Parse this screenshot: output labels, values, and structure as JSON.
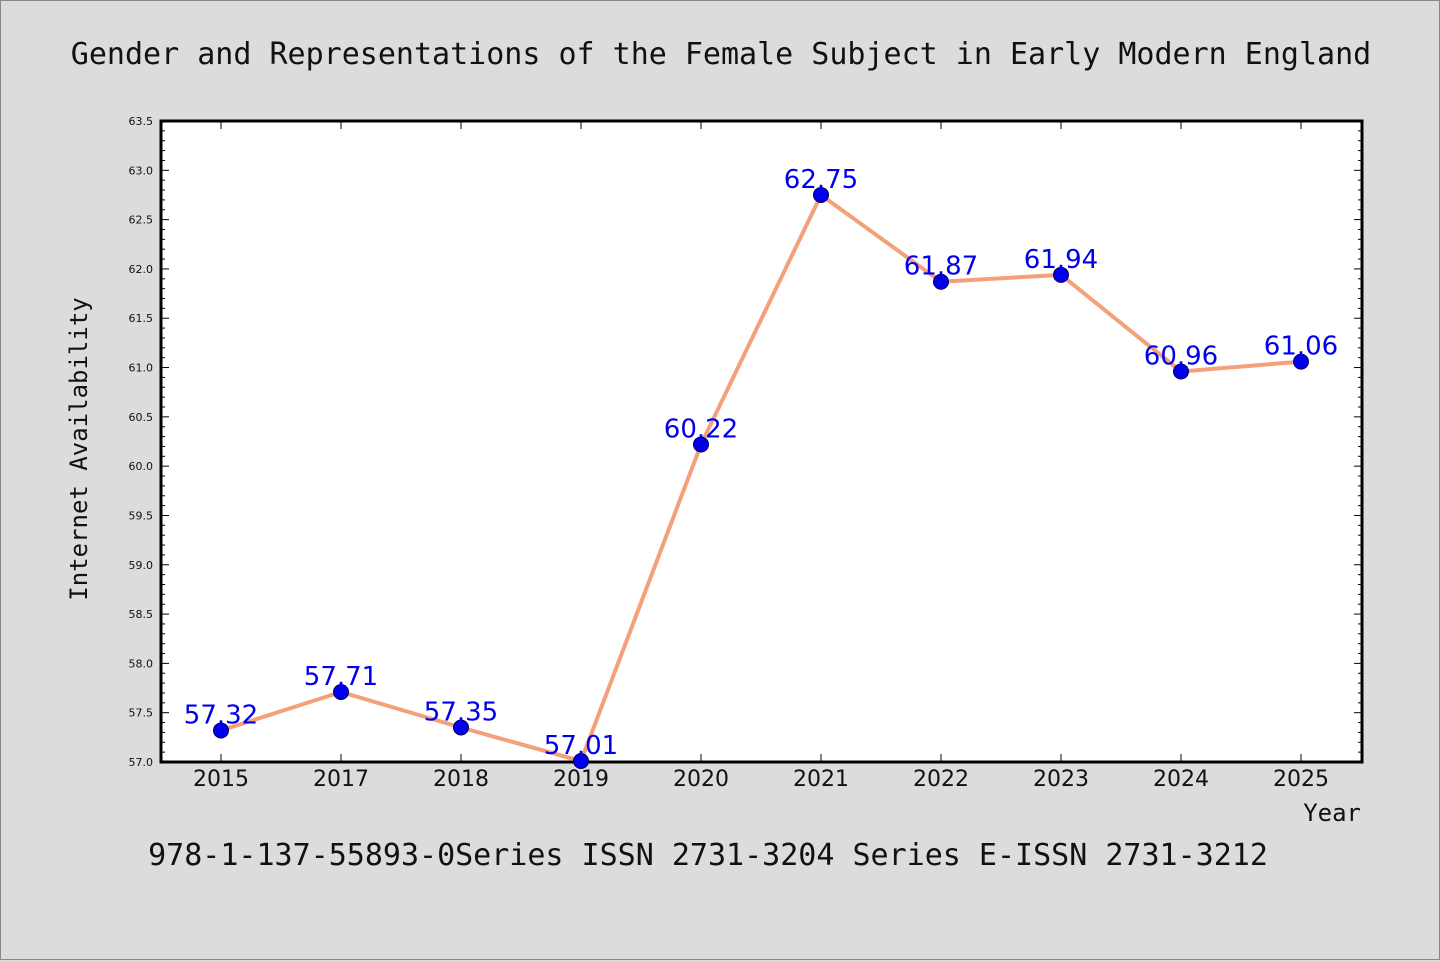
{
  "chart_data": {
    "type": "line",
    "title": "Gender and Representations of the Female Subject in Early Modern England",
    "xlabel": "Year",
    "ylabel": "Internet Availability",
    "categories": [
      "2015",
      "2017",
      "2018",
      "2019",
      "2020",
      "2021",
      "2022",
      "2023",
      "2024",
      "2025"
    ],
    "series": [
      {
        "values": [
          57.32,
          57.71,
          57.35,
          57.01,
          60.22,
          62.75,
          61.87,
          61.94,
          60.96,
          61.06
        ],
        "line_color": "#f4a07a",
        "marker_color": "#0000ee"
      }
    ],
    "data_labels": [
      "57.32",
      "57.71",
      "57.35",
      "57.01",
      "60.22",
      "62.75",
      "61.87",
      "61.94",
      "60.96",
      "61.06"
    ],
    "ylim": [
      57.0,
      63.5
    ],
    "yticks": [
      "57.0",
      "57.5",
      "58.0",
      "58.5",
      "59.0",
      "59.5",
      "60.0",
      "60.5",
      "61.0",
      "61.5",
      "62.0",
      "62.5",
      "63.0",
      "63.5"
    ],
    "grid": false,
    "legend": "none"
  },
  "footer": {
    "text": "978-1-137-55893-0Series ISSN 2731-3204 Series E-ISSN 2731-3212"
  },
  "colors": {
    "background": "#dcdcdc",
    "plot_background": "#ffffff",
    "line": "#f4a07a",
    "marker": "#0000ee",
    "label": "#0000ee"
  }
}
